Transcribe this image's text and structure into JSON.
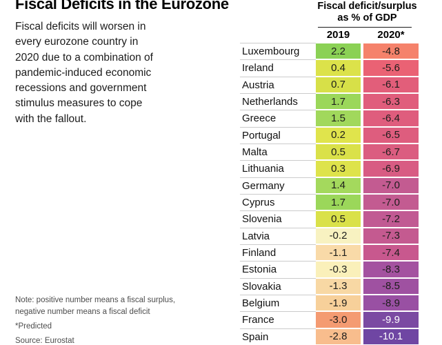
{
  "title": "Fiscal Deficits in the Eurozone",
  "description_lines": [
    "Fiscal deficits will worsen in",
    "every eurozone country in",
    "2020 due to a combination of",
    "pandemic-induced economic",
    "recessions and government",
    "stimulus measures to cope",
    "with the fallout."
  ],
  "table": {
    "header_line1": "Fiscal deficit/surplus",
    "header_line2": "as % of GDP",
    "col_2019": "2019",
    "col_2020": "2020*",
    "rows": [
      {
        "country": "Luxembourg",
        "v2019": "2.2",
        "v2020": "-4.8",
        "c2019": "#8bd155",
        "c2020": "#f5826b"
      },
      {
        "country": "Ireland",
        "v2019": "0.4",
        "v2020": "-5.6",
        "c2019": "#dce24a",
        "c2020": "#ea6274"
      },
      {
        "country": "Austria",
        "v2019": "0.7",
        "v2020": "-6.1",
        "c2019": "#d7e048",
        "c2020": "#e25e7a"
      },
      {
        "country": "Netherlands",
        "v2019": "1.7",
        "v2020": "-6.3",
        "c2019": "#9bd75a",
        "c2020": "#e05d7c"
      },
      {
        "country": "Greece",
        "v2019": "1.5",
        "v2020": "-6.4",
        "c2019": "#a1d85c",
        "c2020": "#df5d7d"
      },
      {
        "country": "Portugal",
        "v2019": "0.2",
        "v2020": "-6.5",
        "c2019": "#e0e44c",
        "c2020": "#de5d7e"
      },
      {
        "country": "Malta",
        "v2019": "0.5",
        "v2020": "-6.7",
        "c2019": "#dae149",
        "c2020": "#db5d80"
      },
      {
        "country": "Lithuania",
        "v2019": "0.3",
        "v2020": "-6.9",
        "c2019": "#dee34b",
        "c2020": "#d85c83"
      },
      {
        "country": "Germany",
        "v2019": "1.4",
        "v2020": "-7.0",
        "c2019": "#a4d95d",
        "c2020": "#c35b91"
      },
      {
        "country": "Cyprus",
        "v2019": "1.7",
        "v2020": "-7.0",
        "c2019": "#9bd75a",
        "c2020": "#c35b91"
      },
      {
        "country": "Slovenia",
        "v2019": "0.5",
        "v2020": "-7.2",
        "c2019": "#dae149",
        "c2020": "#c15a93"
      },
      {
        "country": "Latvia",
        "v2019": "-0.2",
        "v2020": "-7.3",
        "c2019": "#f8f2c1",
        "c2020": "#c45a90"
      },
      {
        "country": "Finland",
        "v2019": "-1.1",
        "v2020": "-7.4",
        "c2019": "#f9daa8",
        "c2020": "#c8588e"
      },
      {
        "country": "Estonia",
        "v2019": "-0.3",
        "v2020": "-8.3",
        "c2019": "#faf0ba",
        "c2020": "#a452a0"
      },
      {
        "country": "Slovakia",
        "v2019": "-1.3",
        "v2020": "-8.5",
        "c2019": "#f8d8a4",
        "c2020": "#9f51a1"
      },
      {
        "country": "Belgium",
        "v2019": "-1.9",
        "v2020": "-8.9",
        "c2019": "#f7d09a",
        "c2020": "#9950a3"
      },
      {
        "country": "France",
        "v2019": "-3.0",
        "v2020": "-9.9",
        "c2019": "#f49b72",
        "c2020": "#7b4aa2",
        "fg2020": "#ffffff"
      },
      {
        "country": "Spain",
        "v2019": "-2.8",
        "v2020": "-10.1",
        "c2019": "#f8bd8d",
        "c2020": "#6f46a3",
        "fg2020": "#ffffff"
      }
    ]
  },
  "notes": {
    "note_line1": "Note: positive number means a fiscal surplus,",
    "note_line2": "negative number means a fiscal deficit",
    "predicted": "*Predicted",
    "source": "Source: Eurostat"
  },
  "colors": {
    "row_divider": "#cbcbcb",
    "cell_text": "#1d1d1b",
    "note_text": "#4c4c4c",
    "header_rule": "#1a1a1a"
  },
  "chart_data": {
    "type": "table",
    "title": "Fiscal Deficits in the Eurozone",
    "subtitle": "Fiscal deficit/surplus as % of GDP",
    "categories": [
      "Luxembourg",
      "Ireland",
      "Austria",
      "Netherlands",
      "Greece",
      "Portugal",
      "Malta",
      "Lithuania",
      "Germany",
      "Cyprus",
      "Slovenia",
      "Latvia",
      "Finland",
      "Estonia",
      "Slovakia",
      "Belgium",
      "France",
      "Spain"
    ],
    "series": [
      {
        "name": "2019",
        "values": [
          2.2,
          0.4,
          0.7,
          1.7,
          1.5,
          0.2,
          0.5,
          0.3,
          1.4,
          1.7,
          0.5,
          -0.2,
          -1.1,
          -0.3,
          -1.3,
          -1.9,
          -3.0,
          -2.8
        ]
      },
      {
        "name": "2020*",
        "values": [
          -4.8,
          -5.6,
          -6.1,
          -6.3,
          -6.4,
          -6.5,
          -6.7,
          -6.9,
          -7.0,
          -7.0,
          -7.2,
          -7.3,
          -7.4,
          -8.3,
          -8.5,
          -8.9,
          -9.9,
          -10.1
        ]
      }
    ],
    "source": "Eurostat",
    "note": "Positive number means a fiscal surplus, negative number means a fiscal deficit. 2020 values are predicted."
  }
}
